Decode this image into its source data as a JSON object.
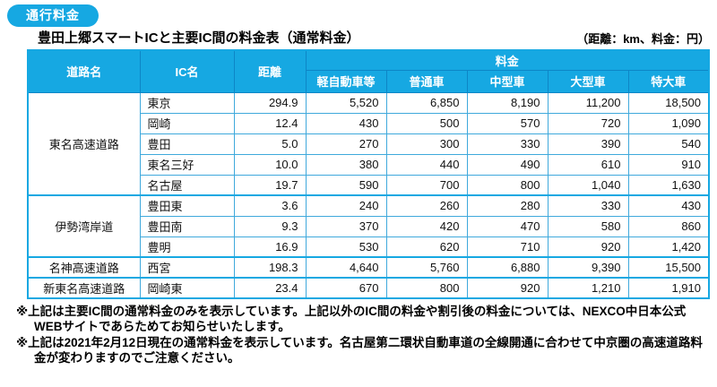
{
  "page": {
    "badge": "通行料金",
    "title": "豊田上郷スマートICと主要IC間の料金表（通常料金）",
    "unit_note": "（距離：km、料金：円）"
  },
  "table": {
    "headers": {
      "road": "道路名",
      "ic": "IC名",
      "distance": "距離",
      "fare": "料金",
      "vehicle_classes": [
        "軽自動車等",
        "普通車",
        "中型車",
        "大型車",
        "特大車"
      ]
    },
    "sections": [
      {
        "road": "東名高速道路",
        "rows": [
          {
            "ic": "東京",
            "distance": "294.9",
            "fares": [
              "5,520",
              "6,850",
              "8,190",
              "11,200",
              "18,500"
            ]
          },
          {
            "ic": "岡崎",
            "distance": "12.4",
            "fares": [
              "430",
              "500",
              "570",
              "720",
              "1,090"
            ]
          },
          {
            "ic": "豊田",
            "distance": "5.0",
            "fares": [
              "270",
              "300",
              "330",
              "390",
              "540"
            ]
          },
          {
            "ic": "東名三好",
            "distance": "10.0",
            "fares": [
              "380",
              "440",
              "490",
              "610",
              "910"
            ]
          },
          {
            "ic": "名古屋",
            "distance": "19.7",
            "fares": [
              "590",
              "700",
              "800",
              "1,040",
              "1,630"
            ]
          }
        ]
      },
      {
        "road": "伊勢湾岸道",
        "rows": [
          {
            "ic": "豊田東",
            "distance": "3.6",
            "fares": [
              "240",
              "260",
              "280",
              "330",
              "430"
            ]
          },
          {
            "ic": "豊田南",
            "distance": "9.3",
            "fares": [
              "370",
              "420",
              "470",
              "580",
              "860"
            ]
          },
          {
            "ic": "豊明",
            "distance": "16.9",
            "fares": [
              "530",
              "620",
              "710",
              "920",
              "1,420"
            ]
          }
        ]
      },
      {
        "road": "名神高速道路",
        "rows": [
          {
            "ic": "西宮",
            "distance": "198.3",
            "fares": [
              "4,640",
              "5,760",
              "6,880",
              "9,390",
              "15,500"
            ]
          }
        ]
      },
      {
        "road": "新東名高速道路",
        "rows": [
          {
            "ic": "岡崎東",
            "distance": "23.4",
            "fares": [
              "670",
              "800",
              "920",
              "1,210",
              "1,910"
            ]
          }
        ]
      }
    ]
  },
  "notes": [
    "※上記は主要IC間の通常料金のみを表示しています。上記以外のIC間の料金や割引後の料金については、NEXCO中日本公式WEBサイトであらためてお知らせいたします。",
    "※上記は2021年2月12日現在の通常料金を表示しています。名古屋第二環状自動車道の全線開通に合わせて中京圏の高速道路料金が変わりますのでご注意ください。"
  ],
  "colors": {
    "accent": "#16a8e2",
    "header-divider": "#0d86c6",
    "grid": "#3fa9dc",
    "ink": "#111111"
  }
}
